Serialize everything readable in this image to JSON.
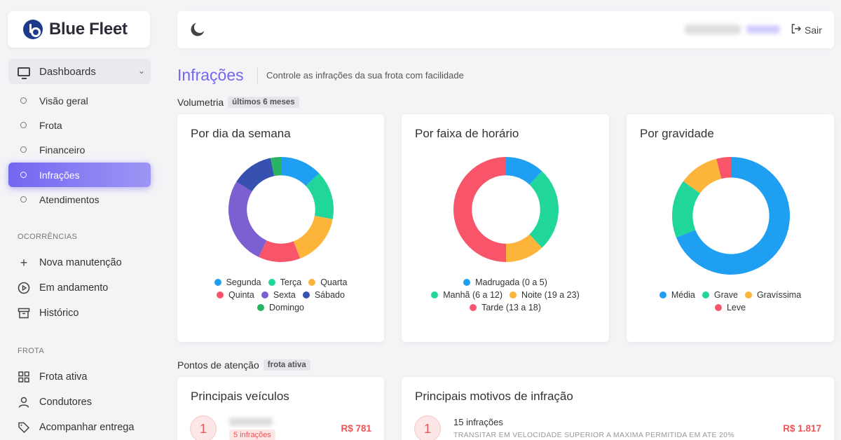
{
  "brand": {
    "name": "Blue Fleet"
  },
  "sidebar": {
    "dashboards_label": "Dashboards",
    "dashboards_items": [
      {
        "label": "Visão geral"
      },
      {
        "label": "Frota"
      },
      {
        "label": "Financeiro"
      },
      {
        "label": "Infrações",
        "active": true
      },
      {
        "label": "Atendimentos"
      }
    ],
    "ocorrencias_label": "OCORRÊNCIAS",
    "ocorrencias_items": [
      {
        "label": "Nova manutenção",
        "icon": "plus-icon"
      },
      {
        "label": "Em andamento",
        "icon": "play-circle-icon"
      },
      {
        "label": "Histórico",
        "icon": "archive-icon"
      }
    ],
    "frota_label": "FROTA",
    "frota_items": [
      {
        "label": "Frota ativa",
        "icon": "grid-icon"
      },
      {
        "label": "Condutores",
        "icon": "user-icon"
      },
      {
        "label": "Acompanhar entrega",
        "icon": "tag-icon"
      }
    ]
  },
  "topbar": {
    "logout_label": "Sair"
  },
  "page": {
    "title": "Infrações",
    "subtitle": "Controle as infrações da sua frota com facilidade"
  },
  "volumetria": {
    "label": "Volumetria",
    "pill": "últimos 6 meses"
  },
  "pontos": {
    "label": "Pontos de atenção",
    "pill": "frota ativa"
  },
  "colors": {
    "accent": "#7367f0",
    "blue": "#1e9ff2",
    "green": "#20d69b",
    "orange": "#fdb43a",
    "red": "#f8546a",
    "purple": "#7c5fd1",
    "navy": "#3651b0",
    "dgreen": "#28b463"
  },
  "chart_data": [
    {
      "type": "pie",
      "title": "Por dia da semana",
      "categories": [
        "Segunda",
        "Terça",
        "Quarta",
        "Quinta",
        "Sexta",
        "Sábado",
        "Domingo"
      ],
      "values": [
        12,
        14,
        15,
        12,
        25,
        12,
        3
      ],
      "colors": [
        "#1e9ff2",
        "#20d69b",
        "#fdb43a",
        "#f8546a",
        "#7c5fd1",
        "#3651b0",
        "#28b463"
      ],
      "legend_rows": [
        [
          0,
          1,
          2
        ],
        [
          3,
          4,
          5
        ],
        [
          6
        ]
      ]
    },
    {
      "type": "pie",
      "title": "Por faixa de horário",
      "categories": [
        "Madrugada (0 a 5)",
        "Manhã (6 a 12)",
        "Noite (19 a 23)",
        "Tarde (13 a 18)"
      ],
      "values": [
        12,
        26,
        12,
        50
      ],
      "colors": [
        "#1e9ff2",
        "#20d69b",
        "#fdb43a",
        "#f8546a"
      ],
      "legend_rows": [
        [
          0
        ],
        [
          1,
          2
        ],
        [
          3
        ]
      ]
    },
    {
      "type": "pie",
      "title": "Por gravidade",
      "categories": [
        "Média",
        "Grave",
        "Gravíssima",
        "Leve"
      ],
      "values": [
        69,
        16,
        11,
        4
      ],
      "colors": [
        "#1e9ff2",
        "#20d69b",
        "#fdb43a",
        "#f8546a"
      ],
      "legend_rows": [
        [
          0,
          1,
          2
        ],
        [
          3
        ]
      ]
    }
  ],
  "vehicles_card": {
    "title": "Principais veículos",
    "rank": "1",
    "infractions_badge": "5 infrações",
    "amount": "R$ 781"
  },
  "motivos_card": {
    "title": "Principais motivos de infração",
    "rank": "1",
    "count": "15 infrações",
    "description": "TRANSITAR EM VELOCIDADE SUPERIOR A MAXIMA PERMITIDA EM ATE 20%",
    "amount": "R$ 1.817"
  }
}
